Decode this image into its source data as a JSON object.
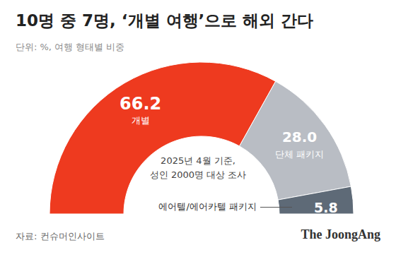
{
  "chart_data": {
    "type": "pie",
    "title": "10명 중 7명, ‘개별 여행’으로 해외 간다",
    "subtitle": "단위: %, 여행 형태별 비중",
    "categories": [
      "개별",
      "단체 패키지",
      "에어텔/에어카텔 패키지"
    ],
    "values": [
      66.2,
      28.0,
      5.8
    ],
    "value_labels": [
      "66.2",
      "28.0",
      "5.8"
    ],
    "colors": [
      "#ee3a1f",
      "#b9bdc4",
      "#5e6a77"
    ],
    "data_labels": true,
    "annotations": [
      "2025년 4월 기준,",
      "성인 2000명 대상 조사"
    ],
    "source": "자료: 컨슈머인사이트",
    "credit": "The JoongAng"
  }
}
